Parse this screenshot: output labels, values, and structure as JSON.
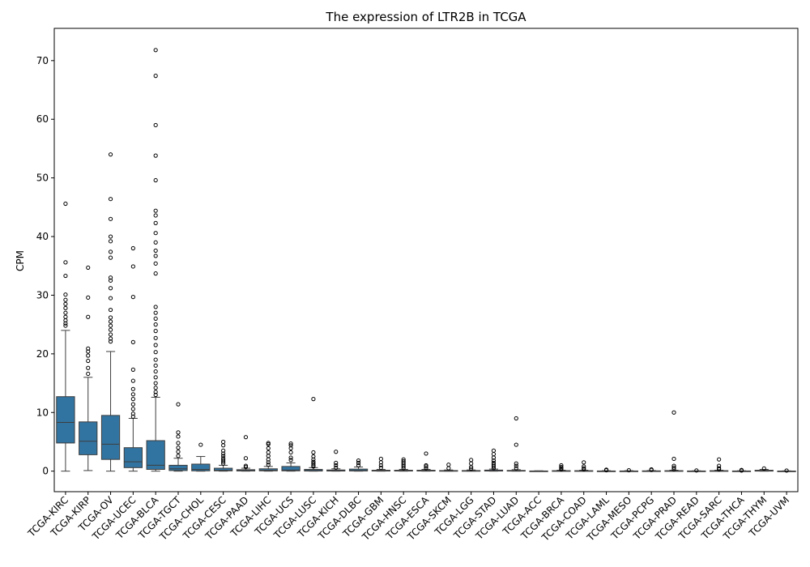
{
  "chart_data": {
    "type": "box",
    "title": "The expression of LTR2B in TCGA",
    "xlabel": "",
    "ylabel": "CPM",
    "ylim": [
      -3.5,
      75.5
    ],
    "yticks": [
      0,
      10,
      20,
      30,
      40,
      50,
      60,
      70
    ],
    "grid": false,
    "box_color": "#3274a1",
    "line_color": "#3d3d3d",
    "categories": [
      "TCGA-KIRC",
      "TCGA-KIRP",
      "TCGA-OV",
      "TCGA-UCEC",
      "TCGA-BLCA",
      "TCGA-TGCT",
      "TCGA-CHOL",
      "TCGA-CESC",
      "TCGA-PAAD",
      "TCGA-LIHC",
      "TCGA-UCS",
      "TCGA-LUSC",
      "TCGA-KICH",
      "TCGA-DLBC",
      "TCGA-GBM",
      "TCGA-HNSC",
      "TCGA-ESCA",
      "TCGA-SKCM",
      "TCGA-LGG",
      "TCGA-STAD",
      "TCGA-LUAD",
      "TCGA-ACC",
      "TCGA-BRCA",
      "TCGA-COAD",
      "TCGA-LAML",
      "TCGA-MESO",
      "TCGA-PCPG",
      "TCGA-PRAD",
      "TCGA-READ",
      "TCGA-SARC",
      "TCGA-THCA",
      "TCGA-THYM",
      "TCGA-UVM"
    ],
    "boxes": [
      {
        "whislo": 0,
        "q1": 4.8,
        "med": 8.3,
        "q3": 12.7,
        "whishi": 24.0,
        "fliers": [
          24.8,
          25.2,
          25.7,
          26.3,
          27.0,
          27.8,
          28.5,
          29.2,
          30.1,
          33.3,
          35.6,
          45.6
        ]
      },
      {
        "whislo": 0.1,
        "q1": 2.8,
        "med": 5.1,
        "q3": 8.4,
        "whishi": 16.0,
        "fliers": [
          16.6,
          17.6,
          18.8,
          19.7,
          20.4,
          20.9,
          26.3,
          29.6,
          34.7
        ]
      },
      {
        "whislo": 0,
        "q1": 2.0,
        "med": 4.6,
        "q3": 9.5,
        "whishi": 20.4,
        "fliers": [
          22.1,
          22.6,
          23.3,
          24.1,
          24.8,
          25.5,
          26.2,
          27.5,
          29.5,
          31.2,
          32.5,
          33.0,
          36.4,
          37.4,
          39.2,
          40.0,
          43.0,
          46.4,
          54.0
        ]
      },
      {
        "whislo": 0,
        "q1": 0.6,
        "med": 1.6,
        "q3": 4.0,
        "whishi": 9.0,
        "fliers": [
          9.3,
          9.8,
          10.6,
          11.4,
          12.3,
          13.1,
          14.0,
          15.4,
          17.3,
          22.0,
          29.7,
          34.9,
          38.0
        ]
      },
      {
        "whislo": 0,
        "q1": 0.3,
        "med": 1.0,
        "q3": 5.2,
        "whishi": 12.6,
        "fliers": [
          13.0,
          13.5,
          14.2,
          15.0,
          16.0,
          17.0,
          18.0,
          19.0,
          20.3,
          21.5,
          22.7,
          23.9,
          25.0,
          26.0,
          27.0,
          28.0,
          33.7,
          35.4,
          36.7,
          37.6,
          39.0,
          40.6,
          42.3,
          43.6,
          44.4,
          49.6,
          53.8,
          59.0,
          67.4,
          71.8
        ]
      },
      {
        "whislo": 0,
        "q1": 0.1,
        "med": 0.4,
        "q3": 1.0,
        "whishi": 2.2,
        "fliers": [
          2.6,
          3.3,
          4.0,
          4.8,
          5.9,
          6.6,
          11.4
        ]
      },
      {
        "whislo": 0,
        "q1": 0.05,
        "med": 0.3,
        "q3": 1.2,
        "whishi": 2.5,
        "fliers": [
          4.5
        ]
      },
      {
        "whislo": 0,
        "q1": 0.05,
        "med": 0.15,
        "q3": 0.5,
        "whishi": 1.0,
        "fliers": [
          1.3,
          1.6,
          1.9,
          2.2,
          2.6,
          3.0,
          3.5,
          4.4,
          5.0
        ]
      },
      {
        "whislo": 0,
        "q1": 0.03,
        "med": 0.1,
        "q3": 0.25,
        "whishi": 0.5,
        "fliers": [
          0.7,
          0.9,
          2.2,
          5.8
        ]
      },
      {
        "whislo": 0,
        "q1": 0.05,
        "med": 0.15,
        "q3": 0.4,
        "whishi": 0.8,
        "fliers": [
          1.1,
          1.5,
          2.0,
          2.6,
          3.2,
          3.9,
          4.6,
          4.8
        ]
      },
      {
        "whislo": 0,
        "q1": 0.05,
        "med": 0.2,
        "q3": 0.8,
        "whishi": 1.4,
        "fliers": [
          1.9,
          2.3,
          3.2,
          3.9,
          4.4,
          4.7
        ]
      },
      {
        "whislo": 0,
        "q1": 0.02,
        "med": 0.1,
        "q3": 0.3,
        "whishi": 0.6,
        "fliers": [
          0.8,
          1.0,
          1.3,
          1.6,
          2.0,
          2.5,
          3.2,
          12.3
        ]
      },
      {
        "whislo": 0,
        "q1": 0.02,
        "med": 0.08,
        "q3": 0.2,
        "whishi": 0.4,
        "fliers": [
          0.6,
          1.0,
          1.4,
          3.3
        ]
      },
      {
        "whislo": 0,
        "q1": 0.03,
        "med": 0.1,
        "q3": 0.35,
        "whishi": 0.7,
        "fliers": [
          1.0,
          1.4,
          1.8
        ]
      },
      {
        "whislo": 0,
        "q1": 0.02,
        "med": 0.05,
        "q3": 0.15,
        "whishi": 0.3,
        "fliers": [
          0.6,
          1.0,
          1.5,
          2.1
        ]
      },
      {
        "whislo": 0,
        "q1": 0.02,
        "med": 0.05,
        "q3": 0.15,
        "whishi": 0.3,
        "fliers": [
          0.5,
          0.8,
          1.1,
          1.4,
          1.7,
          2.0
        ]
      },
      {
        "whislo": 0,
        "q1": 0.02,
        "med": 0.05,
        "q3": 0.15,
        "whishi": 0.3,
        "fliers": [
          0.5,
          0.8,
          1.0,
          3.0
        ]
      },
      {
        "whislo": 0,
        "q1": 0.01,
        "med": 0.03,
        "q3": 0.1,
        "whishi": 0.2,
        "fliers": [
          0.5,
          1.1
        ]
      },
      {
        "whislo": 0,
        "q1": 0.01,
        "med": 0.03,
        "q3": 0.1,
        "whishi": 0.2,
        "fliers": [
          0.4,
          0.7,
          1.3,
          1.9
        ]
      },
      {
        "whislo": 0,
        "q1": 0.02,
        "med": 0.06,
        "q3": 0.18,
        "whishi": 0.35,
        "fliers": [
          0.5,
          0.8,
          1.1,
          1.4,
          1.8,
          2.3,
          2.9,
          3.5
        ]
      },
      {
        "whislo": 0,
        "q1": 0.01,
        "med": 0.04,
        "q3": 0.12,
        "whishi": 0.25,
        "fliers": [
          0.5,
          0.9,
          1.3,
          4.5,
          9.0
        ]
      },
      {
        "whislo": 0,
        "q1": 0,
        "med": 0.01,
        "q3": 0.03,
        "whishi": 0.06,
        "fliers": []
      },
      {
        "whislo": 0,
        "q1": 0.01,
        "med": 0.03,
        "q3": 0.08,
        "whishi": 0.16,
        "fliers": [
          0.3,
          0.5,
          0.7,
          1.0
        ]
      },
      {
        "whislo": 0,
        "q1": 0.01,
        "med": 0.03,
        "q3": 0.08,
        "whishi": 0.16,
        "fliers": [
          0.3,
          0.5,
          0.8,
          1.5
        ]
      },
      {
        "whislo": 0,
        "q1": 0,
        "med": 0.01,
        "q3": 0.03,
        "whishi": 0.08,
        "fliers": [
          0.15,
          0.25
        ]
      },
      {
        "whislo": 0,
        "q1": 0,
        "med": 0.01,
        "q3": 0.03,
        "whishi": 0.08,
        "fliers": [
          0.15
        ]
      },
      {
        "whislo": 0,
        "q1": 0,
        "med": 0.02,
        "q3": 0.05,
        "whishi": 0.1,
        "fliers": [
          0.2,
          0.3
        ]
      },
      {
        "whislo": 0,
        "q1": 0.01,
        "med": 0.03,
        "q3": 0.08,
        "whishi": 0.16,
        "fliers": [
          0.3,
          0.6,
          0.9,
          2.1,
          10.0
        ]
      },
      {
        "whislo": 0,
        "q1": 0,
        "med": 0.01,
        "q3": 0.03,
        "whishi": 0.06,
        "fliers": [
          0.12
        ]
      },
      {
        "whislo": 0,
        "q1": 0.01,
        "med": 0.03,
        "q3": 0.08,
        "whishi": 0.16,
        "fliers": [
          0.3,
          0.5,
          0.9,
          2.0
        ]
      },
      {
        "whislo": 0,
        "q1": 0,
        "med": 0.01,
        "q3": 0.03,
        "whishi": 0.06,
        "fliers": [
          0.1,
          0.2
        ]
      },
      {
        "whislo": 0,
        "q1": 0.01,
        "med": 0.05,
        "q3": 0.15,
        "whishi": 0.3,
        "fliers": [
          0.45
        ]
      },
      {
        "whislo": 0,
        "q1": 0,
        "med": 0.01,
        "q3": 0.02,
        "whishi": 0.05,
        "fliers": [
          0.1
        ]
      }
    ]
  }
}
